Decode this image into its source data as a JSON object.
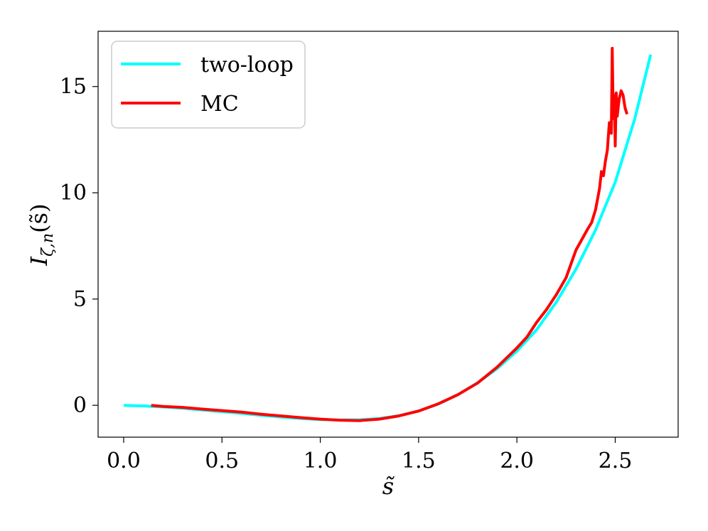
{
  "chart_data": {
    "type": "line",
    "xlabel": "s̃",
    "ylabel": "I_{ζ,n}(s̃)",
    "ylabel_main": "I",
    "ylabel_sub": "ζ,n",
    "ylabel_arg": "(s̃)",
    "xlim": [
      -0.13,
      2.82
    ],
    "ylim": [
      -1.5,
      17.6
    ],
    "xticks": [
      0.0,
      0.5,
      1.0,
      1.5,
      2.0,
      2.5
    ],
    "xtick_labels": [
      "0.0",
      "0.5",
      "1.0",
      "1.5",
      "2.0",
      "2.5"
    ],
    "yticks": [
      0,
      5,
      10,
      15
    ],
    "ytick_labels": [
      "0",
      "5",
      "10",
      "15"
    ],
    "grid": false,
    "legend_position": "top-left",
    "series": [
      {
        "name": "two-loop",
        "color": "#00ffff",
        "x": [
          0.0,
          0.1,
          0.2,
          0.3,
          0.4,
          0.5,
          0.6,
          0.7,
          0.8,
          0.9,
          1.0,
          1.1,
          1.2,
          1.3,
          1.4,
          1.5,
          1.6,
          1.7,
          1.8,
          1.9,
          2.0,
          2.1,
          2.2,
          2.3,
          2.4,
          2.5,
          2.6,
          2.68
        ],
        "y": [
          0.0,
          -0.03,
          -0.08,
          -0.14,
          -0.22,
          -0.3,
          -0.38,
          -0.47,
          -0.55,
          -0.62,
          -0.67,
          -0.69,
          -0.68,
          -0.62,
          -0.49,
          -0.27,
          0.06,
          0.5,
          1.06,
          1.73,
          2.55,
          3.55,
          4.85,
          6.4,
          8.25,
          10.5,
          13.5,
          16.5
        ]
      },
      {
        "name": "MC",
        "color": "#ff0000",
        "x": [
          0.14,
          0.2,
          0.3,
          0.4,
          0.5,
          0.6,
          0.7,
          0.8,
          0.9,
          1.0,
          1.1,
          1.2,
          1.3,
          1.4,
          1.5,
          1.6,
          1.7,
          1.8,
          1.9,
          2.0,
          2.05,
          2.1,
          2.15,
          2.2,
          2.25,
          2.3,
          2.33,
          2.36,
          2.38,
          2.4,
          2.42,
          2.43,
          2.44,
          2.45,
          2.46,
          2.47,
          2.48,
          2.485,
          2.49,
          2.495,
          2.5,
          2.505,
          2.51,
          2.515,
          2.52,
          2.53,
          2.54,
          2.55,
          2.56
        ],
        "y": [
          0.0,
          -0.05,
          -0.1,
          -0.18,
          -0.25,
          -0.32,
          -0.42,
          -0.5,
          -0.58,
          -0.65,
          -0.7,
          -0.72,
          -0.65,
          -0.5,
          -0.27,
          0.07,
          0.5,
          1.05,
          1.8,
          2.7,
          3.2,
          3.9,
          4.5,
          5.2,
          6.0,
          7.3,
          7.8,
          8.3,
          8.6,
          9.2,
          10.2,
          11.0,
          10.8,
          11.5,
          12.0,
          13.3,
          12.8,
          16.8,
          13.5,
          14.6,
          12.2,
          14.7,
          13.6,
          14.0,
          14.4,
          14.8,
          14.6,
          14.0,
          13.7
        ]
      }
    ]
  }
}
